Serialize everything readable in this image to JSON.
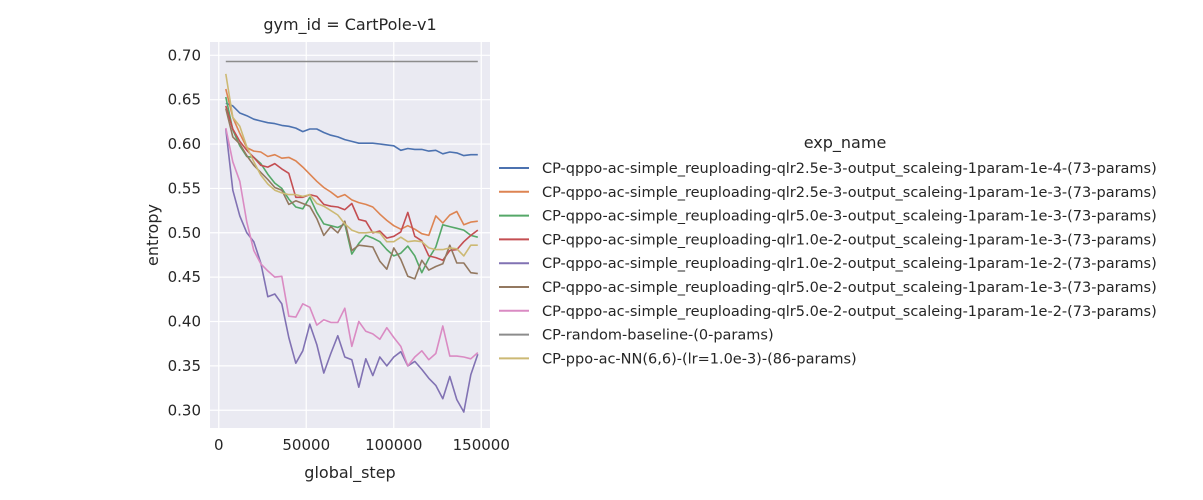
{
  "chart_data": {
    "type": "line",
    "title": "gym_id = CartPole-v1",
    "xlabel": "global_step",
    "ylabel": "entropy",
    "xlim": [
      -5000,
      155000
    ],
    "ylim": [
      0.28,
      0.715
    ],
    "xticks": [
      0,
      50000,
      100000,
      150000
    ],
    "xtick_labels": [
      "0",
      "50000",
      "100000",
      "150000"
    ],
    "yticks": [
      0.3,
      0.35,
      0.4,
      0.45,
      0.5,
      0.55,
      0.6,
      0.65,
      0.7
    ],
    "ytick_labels": [
      "0.30",
      "0.35",
      "0.40",
      "0.45",
      "0.50",
      "0.55",
      "0.60",
      "0.65",
      "0.70"
    ],
    "grid": true,
    "background": "#eaeaf2",
    "legend_title": "exp_name",
    "legend_position": "right",
    "series": [
      {
        "name": "CP-qppo-ac-simple_reuploading-qlr2.5e-3-output_scaleing-1param-1e-4-(73-params)",
        "color": "#4c72b0",
        "x": [
          4000,
          8000,
          12000,
          16000,
          20000,
          24000,
          28000,
          32000,
          36000,
          40000,
          44000,
          48000,
          52000,
          56000,
          60000,
          64000,
          68000,
          72000,
          76000,
          80000,
          84000,
          88000,
          92000,
          96000,
          100000,
          104000,
          108000,
          112000,
          116000,
          120000,
          124000,
          128000,
          132000,
          136000,
          140000,
          144000,
          148000
        ],
        "y": [
          0.646,
          0.643,
          0.635,
          0.632,
          0.628,
          0.626,
          0.624,
          0.623,
          0.621,
          0.62,
          0.618,
          0.614,
          0.617,
          0.617,
          0.613,
          0.61,
          0.608,
          0.605,
          0.603,
          0.601,
          0.601,
          0.601,
          0.6,
          0.599,
          0.598,
          0.593,
          0.595,
          0.594,
          0.594,
          0.592,
          0.593,
          0.589,
          0.591,
          0.59,
          0.587,
          0.588,
          0.588
        ]
      },
      {
        "name": "CP-qppo-ac-simple_reuploading-qlr2.5e-3-output_scaleing-1param-1e-3-(73-params)",
        "color": "#dd8452",
        "x": [
          4000,
          8000,
          12000,
          16000,
          20000,
          24000,
          28000,
          32000,
          36000,
          40000,
          44000,
          48000,
          52000,
          56000,
          60000,
          64000,
          68000,
          72000,
          76000,
          80000,
          84000,
          88000,
          92000,
          96000,
          100000,
          104000,
          108000,
          112000,
          116000,
          120000,
          124000,
          128000,
          132000,
          136000,
          140000,
          144000,
          148000
        ],
        "y": [
          0.662,
          0.63,
          0.612,
          0.596,
          0.592,
          0.591,
          0.586,
          0.588,
          0.584,
          0.585,
          0.581,
          0.574,
          0.566,
          0.558,
          0.551,
          0.546,
          0.54,
          0.543,
          0.537,
          0.534,
          0.532,
          0.529,
          0.521,
          0.514,
          0.508,
          0.504,
          0.508,
          0.504,
          0.499,
          0.497,
          0.519,
          0.511,
          0.52,
          0.524,
          0.509,
          0.512,
          0.513
        ]
      },
      {
        "name": "CP-qppo-ac-simple_reuploading-qlr5.0e-3-output_scaleing-1param-1e-3-(73-params)",
        "color": "#55a868",
        "x": [
          4000,
          8000,
          12000,
          16000,
          20000,
          24000,
          28000,
          32000,
          36000,
          40000,
          44000,
          48000,
          52000,
          56000,
          60000,
          64000,
          68000,
          72000,
          76000,
          80000,
          84000,
          88000,
          92000,
          96000,
          100000,
          104000,
          108000,
          112000,
          116000,
          120000,
          124000,
          128000,
          132000,
          136000,
          140000,
          144000,
          148000
        ],
        "y": [
          0.653,
          0.616,
          0.598,
          0.586,
          0.585,
          0.578,
          0.566,
          0.556,
          0.55,
          0.538,
          0.529,
          0.527,
          0.54,
          0.523,
          0.51,
          0.508,
          0.506,
          0.51,
          0.476,
          0.488,
          0.497,
          0.494,
          0.49,
          0.481,
          0.474,
          0.477,
          0.485,
          0.474,
          0.455,
          0.471,
          0.484,
          0.509,
          0.507,
          0.505,
          0.503,
          0.497,
          0.495
        ]
      },
      {
        "name": "CP-qppo-ac-simple_reuploading-qlr1.0e-2-output_scaleing-1param-1e-3-(73-params)",
        "color": "#c44e52",
        "x": [
          4000,
          8000,
          12000,
          16000,
          20000,
          24000,
          28000,
          32000,
          36000,
          40000,
          44000,
          48000,
          52000,
          56000,
          60000,
          64000,
          68000,
          72000,
          76000,
          80000,
          84000,
          88000,
          92000,
          96000,
          100000,
          104000,
          108000,
          112000,
          116000,
          120000,
          124000,
          128000,
          132000,
          136000,
          140000,
          144000,
          148000
        ],
        "y": [
          0.643,
          0.617,
          0.603,
          0.593,
          0.585,
          0.576,
          0.574,
          0.578,
          0.572,
          0.567,
          0.54,
          0.54,
          0.543,
          0.541,
          0.532,
          0.53,
          0.529,
          0.526,
          0.533,
          0.515,
          0.513,
          0.5,
          0.502,
          0.494,
          0.496,
          0.501,
          0.523,
          0.496,
          0.491,
          0.474,
          0.472,
          0.469,
          0.48,
          0.481,
          0.49,
          0.497,
          0.503
        ]
      },
      {
        "name": "CP-qppo-ac-simple_reuploading-qlr1.0e-2-output_scaleing-1param-1e-2-(73-params)",
        "color": "#8172b3",
        "x": [
          4000,
          8000,
          12000,
          16000,
          20000,
          24000,
          28000,
          32000,
          36000,
          40000,
          44000,
          48000,
          52000,
          56000,
          60000,
          64000,
          68000,
          72000,
          76000,
          80000,
          84000,
          88000,
          92000,
          96000,
          100000,
          104000,
          108000,
          112000,
          116000,
          120000,
          124000,
          128000,
          132000,
          136000,
          140000,
          144000,
          148000
        ],
        "y": [
          0.617,
          0.548,
          0.519,
          0.5,
          0.49,
          0.466,
          0.428,
          0.431,
          0.42,
          0.382,
          0.353,
          0.367,
          0.397,
          0.374,
          0.342,
          0.364,
          0.384,
          0.36,
          0.357,
          0.326,
          0.358,
          0.339,
          0.36,
          0.35,
          0.36,
          0.366,
          0.35,
          0.355,
          0.346,
          0.336,
          0.328,
          0.313,
          0.338,
          0.312,
          0.298,
          0.34,
          0.363
        ]
      },
      {
        "name": "CP-qppo-ac-simple_reuploading-qlr5.0e-2-output_scaleing-1param-1e-3-(73-params)",
        "color": "#937860",
        "x": [
          4000,
          8000,
          12000,
          16000,
          20000,
          24000,
          28000,
          32000,
          36000,
          40000,
          44000,
          48000,
          52000,
          56000,
          60000,
          64000,
          68000,
          72000,
          76000,
          80000,
          84000,
          88000,
          92000,
          96000,
          100000,
          104000,
          108000,
          112000,
          116000,
          120000,
          124000,
          128000,
          132000,
          136000,
          140000,
          144000,
          148000
        ],
        "y": [
          0.64,
          0.608,
          0.6,
          0.587,
          0.576,
          0.568,
          0.56,
          0.551,
          0.548,
          0.532,
          0.536,
          0.533,
          0.53,
          0.516,
          0.497,
          0.507,
          0.5,
          0.513,
          0.48,
          0.486,
          0.485,
          0.484,
          0.468,
          0.459,
          0.483,
          0.47,
          0.451,
          0.448,
          0.469,
          0.458,
          0.462,
          0.465,
          0.486,
          0.466,
          0.466,
          0.455,
          0.454
        ]
      },
      {
        "name": "CP-qppo-ac-simple_reuploading-qlr5.0e-2-output_scaleing-1param-1e-2-(73-params)",
        "color": "#da8bc3",
        "x": [
          4000,
          8000,
          12000,
          16000,
          20000,
          24000,
          28000,
          32000,
          36000,
          40000,
          44000,
          48000,
          52000,
          56000,
          60000,
          64000,
          68000,
          72000,
          76000,
          80000,
          84000,
          88000,
          92000,
          96000,
          100000,
          104000,
          108000,
          112000,
          116000,
          120000,
          124000,
          128000,
          132000,
          136000,
          140000,
          144000,
          148000
        ],
        "y": [
          0.618,
          0.58,
          0.558,
          0.512,
          0.48,
          0.465,
          0.457,
          0.45,
          0.451,
          0.406,
          0.405,
          0.42,
          0.416,
          0.396,
          0.402,
          0.399,
          0.399,
          0.415,
          0.372,
          0.4,
          0.389,
          0.386,
          0.38,
          0.393,
          0.382,
          0.372,
          0.35,
          0.36,
          0.367,
          0.357,
          0.364,
          0.395,
          0.361,
          0.361,
          0.36,
          0.358,
          0.365
        ]
      },
      {
        "name": "CP-random-baseline-(0-params)",
        "color": "#8c8c8c",
        "x": [
          4000,
          148000
        ],
        "y": [
          0.693,
          0.693
        ]
      },
      {
        "name": "CP-ppo-ac-NN(6,6)-(lr=1.0e-3)-(86-params)",
        "color": "#ccb974",
        "x": [
          4000,
          8000,
          12000,
          16000,
          20000,
          24000,
          28000,
          32000,
          36000,
          40000,
          44000,
          48000,
          52000,
          56000,
          60000,
          64000,
          68000,
          72000,
          76000,
          80000,
          84000,
          88000,
          92000,
          96000,
          100000,
          104000,
          108000,
          112000,
          116000,
          120000,
          124000,
          128000,
          132000,
          136000,
          140000,
          144000,
          148000
        ],
        "y": [
          0.679,
          0.63,
          0.62,
          0.597,
          0.58,
          0.565,
          0.555,
          0.548,
          0.545,
          0.543,
          0.543,
          0.541,
          0.543,
          0.533,
          0.53,
          0.525,
          0.52,
          0.51,
          0.503,
          0.5,
          0.5,
          0.501,
          0.5,
          0.49,
          0.49,
          0.495,
          0.49,
          0.491,
          0.49,
          0.483,
          0.481,
          0.481,
          0.483,
          0.482,
          0.474,
          0.486,
          0.486
        ]
      }
    ]
  }
}
